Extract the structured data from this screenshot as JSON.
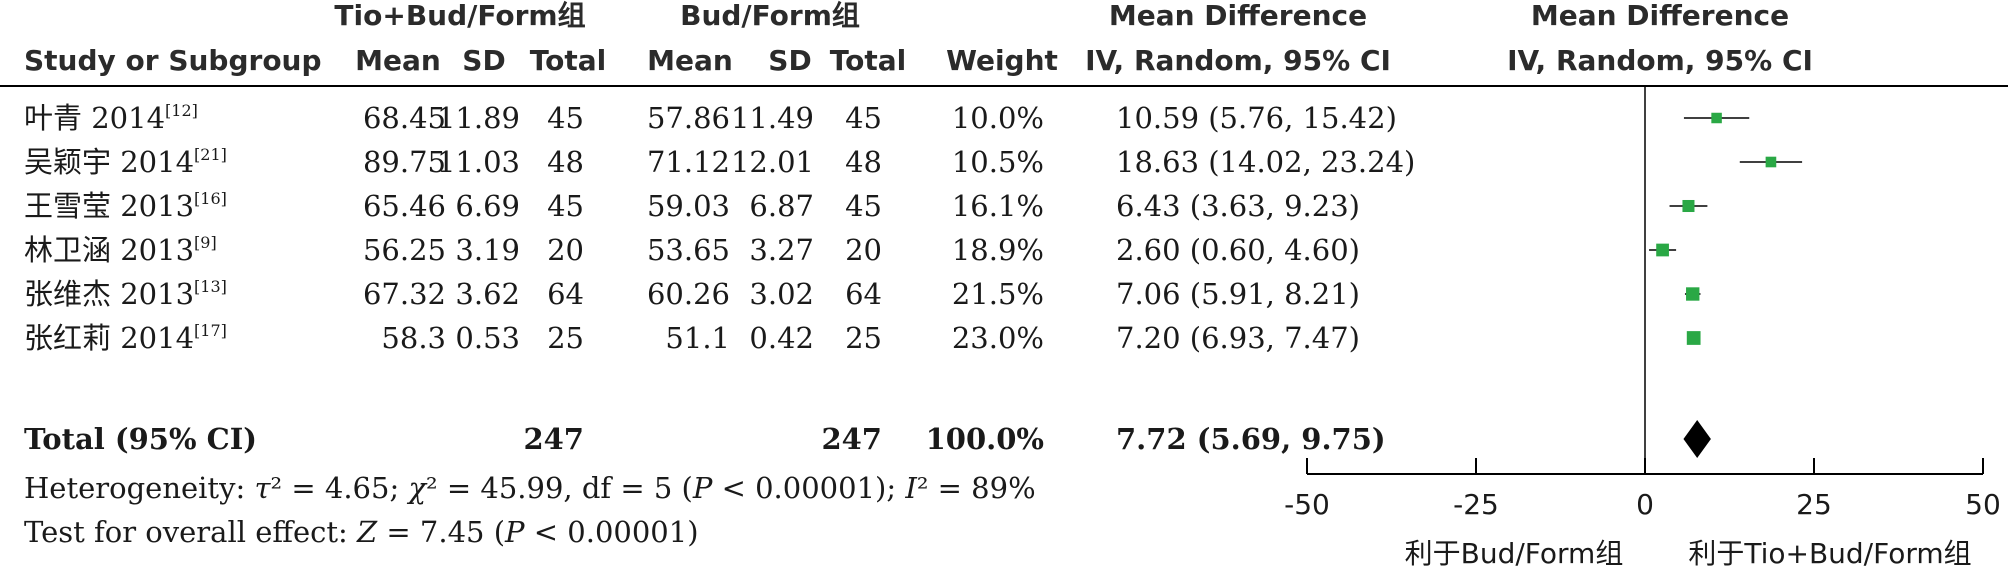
{
  "chart_data": {
    "type": "forest",
    "headers": {
      "group1": "Tio+Bud/Form组",
      "group2": "Bud/Form组",
      "md_top": "Mean Difference",
      "md_sub": "IV, Random, 95% CI",
      "plot_top": "Mean Difference",
      "plot_sub": "IV, Random, 95% CI",
      "study": "Study or Subgroup",
      "mean": "Mean",
      "sd": "SD",
      "total": "Total",
      "weight": "Weight"
    },
    "studies": [
      {
        "name": "叶青 2014",
        "ref": "[12]",
        "mean1": "68.45",
        "sd1": "11.89",
        "n1": "45",
        "mean2": "57.86",
        "sd2": "11.49",
        "n2": "45",
        "weight": "10.0%",
        "ci_text": "10.59 (5.76, 15.42)",
        "md": 10.59,
        "lo": 5.76,
        "hi": 15.42,
        "w": 10.0
      },
      {
        "name": "吴颖宇 2014",
        "ref": "[21]",
        "mean1": "89.75",
        "sd1": "11.03",
        "n1": "48",
        "mean2": "71.12",
        "sd2": "12.01",
        "n2": "48",
        "weight": "10.5%",
        "ci_text": "18.63 (14.02, 23.24)",
        "md": 18.63,
        "lo": 14.02,
        "hi": 23.24,
        "w": 10.5
      },
      {
        "name": "王雪莹 2013",
        "ref": "[16]",
        "mean1": "65.46",
        "sd1": "6.69",
        "n1": "45",
        "mean2": "59.03",
        "sd2": "6.87",
        "n2": "45",
        "weight": "16.1%",
        "ci_text": "6.43 (3.63, 9.23)",
        "md": 6.43,
        "lo": 3.63,
        "hi": 9.23,
        "w": 16.1
      },
      {
        "name": "林卫涵 2013",
        "ref": "[9]",
        "mean1": "56.25",
        "sd1": "3.19",
        "n1": "20",
        "mean2": "53.65",
        "sd2": "3.27",
        "n2": "20",
        "weight": "18.9%",
        "ci_text": "2.60 (0.60, 4.60)",
        "md": 2.6,
        "lo": 0.6,
        "hi": 4.6,
        "w": 18.9
      },
      {
        "name": "张维杰 2013",
        "ref": "[13]",
        "mean1": "67.32",
        "sd1": "3.62",
        "n1": "64",
        "mean2": "60.26",
        "sd2": "3.02",
        "n2": "64",
        "weight": "21.5%",
        "ci_text": "7.06 (5.91, 8.21)",
        "md": 7.06,
        "lo": 5.91,
        "hi": 8.21,
        "w": 21.5
      },
      {
        "name": "张红莉 2014",
        "ref": "[17]",
        "mean1": "58.3",
        "sd1": "0.53",
        "n1": "25",
        "mean2": "51.1",
        "sd2": "0.42",
        "n2": "25",
        "weight": "23.0%",
        "ci_text": "7.20 (6.93, 7.47)",
        "md": 7.2,
        "lo": 6.93,
        "hi": 7.47,
        "w": 23.0
      }
    ],
    "total": {
      "label": "Total (95% CI)",
      "n1": "247",
      "n2": "247",
      "weight": "100.0%",
      "ci_text": "7.72 (5.69, 9.75)",
      "md": 7.72,
      "lo": 5.69,
      "hi": 9.75
    },
    "heterogeneity": {
      "prefix": "Heterogeneity: ",
      "tau_sym": "τ",
      "tau_rest": "² = 4.65; ",
      "chi_sym": "χ",
      "chi_rest": "² = 45.99, df = 5 (",
      "p_sym": "P",
      "p_rest": " < 0.00001); ",
      "i_sym": "I",
      "i_rest": "² = 89%"
    },
    "overall": {
      "prefix": "Test for overall effect: ",
      "z_sym": "Z",
      "z_rest": " = 7.45 (",
      "p_sym": "P",
      "p_rest": " < 0.00001)"
    },
    "axis": {
      "min": -50,
      "max": 50,
      "ticks": [
        "-50",
        "-25",
        "0",
        "25",
        "50"
      ],
      "tick_values": [
        -50,
        -25,
        0,
        25,
        50
      ]
    },
    "favours_left": "利于Bud/Form组",
    "favours_right": "利于Tio+Bud/Form组",
    "colors": {
      "square": "#2aa845",
      "diamond": "#000000",
      "line": "#000000"
    }
  }
}
